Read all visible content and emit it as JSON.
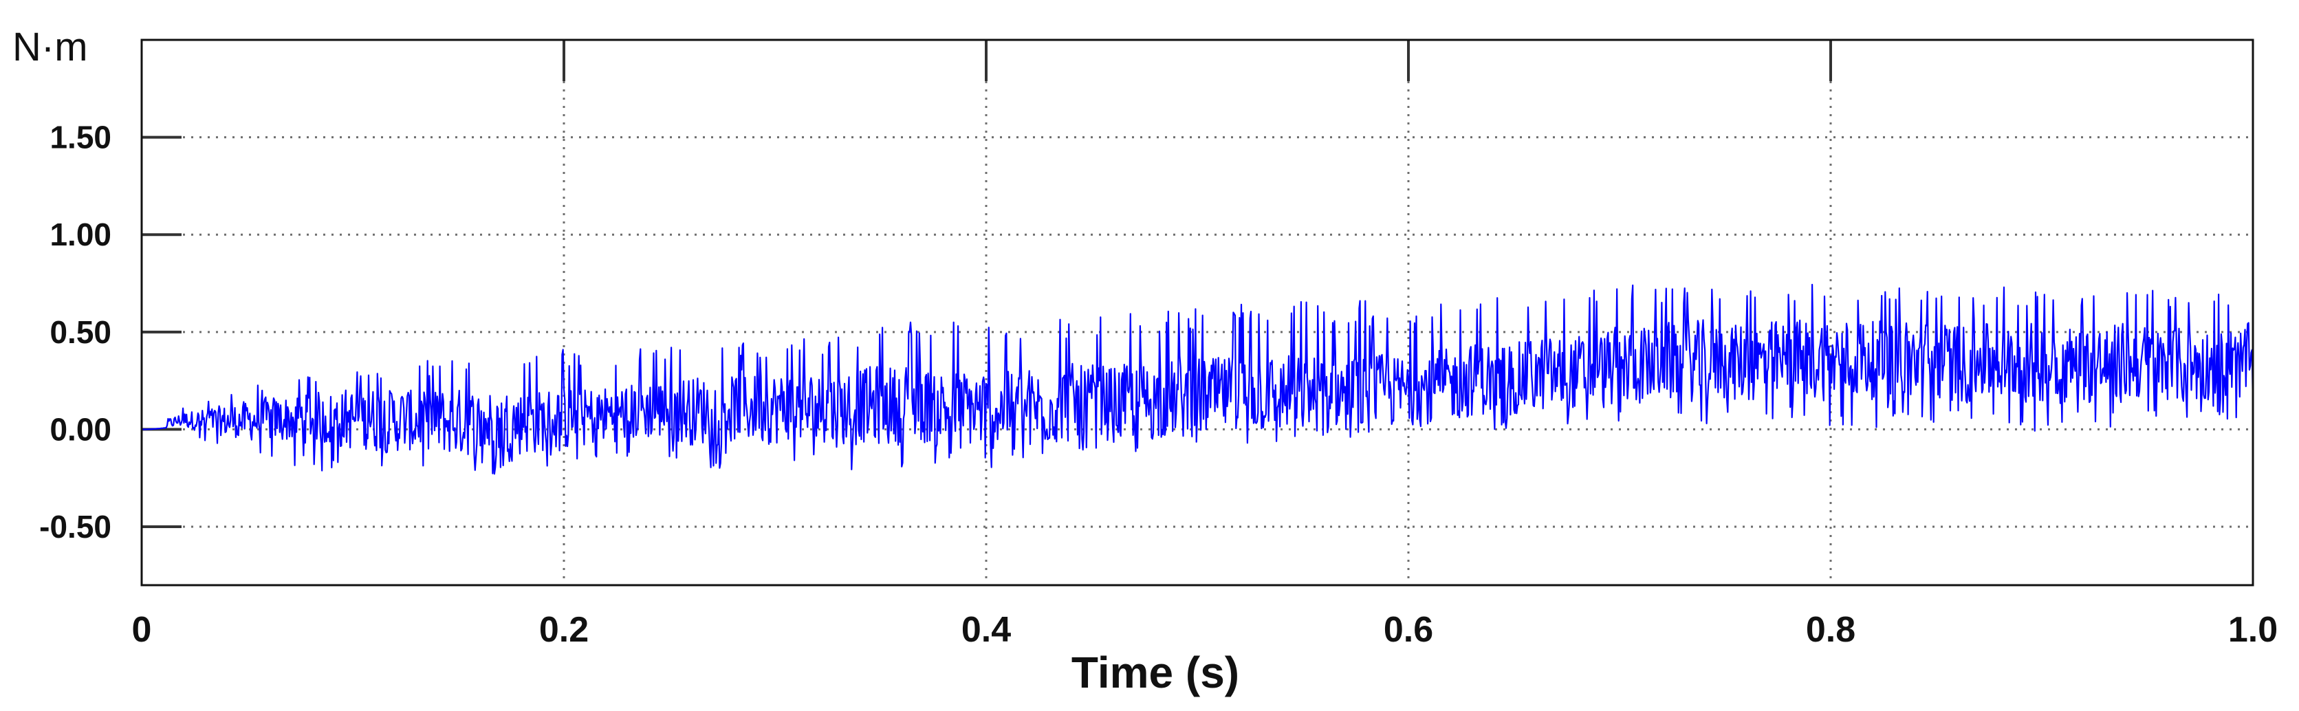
{
  "chart_data": {
    "type": "line",
    "title": "",
    "xlabel": "Time (s)",
    "ylabel": "N·m",
    "xlim": [
      0,
      1.0
    ],
    "ylim": [
      -0.8,
      2.0
    ],
    "x_ticks": [
      0,
      0.2,
      0.4,
      0.6,
      0.8,
      1.0
    ],
    "x_tick_labels": [
      "0",
      "0.2",
      "0.4",
      "0.6",
      "0.8",
      "1.0"
    ],
    "y_ticks": [
      -0.5,
      0.0,
      0.5,
      1.0,
      1.5
    ],
    "y_tick_labels": [
      "-0.50",
      "0.00",
      "0.50",
      "1.00",
      "1.50"
    ],
    "grid": true,
    "line_color": "#0000ff",
    "series": [
      {
        "x": [
          0,
          0.02,
          0.04,
          0.06,
          0.08,
          0.1,
          0.12,
          0.14,
          0.16,
          0.18,
          0.2,
          0.22,
          0.24,
          0.26,
          0.28,
          0.3,
          0.32,
          0.34,
          0.36,
          0.38,
          0.4,
          0.42,
          0.44,
          0.46,
          0.48,
          0.5,
          0.52,
          0.54,
          0.56,
          0.58,
          0.6,
          0.62,
          0.64,
          0.66,
          0.68,
          0.7,
          0.72,
          0.74,
          0.76,
          0.78,
          0.8,
          0.82,
          0.84,
          0.86,
          0.88,
          0.9,
          0.92,
          0.94,
          0.96,
          0.98,
          1.0
        ],
        "mean": [
          0.0,
          0.05,
          0.04,
          0.05,
          0.06,
          0.05,
          0.05,
          0.04,
          0.03,
          0.04,
          0.05,
          0.08,
          0.1,
          0.1,
          0.11,
          0.11,
          0.1,
          0.12,
          0.13,
          0.12,
          0.1,
          0.11,
          0.13,
          0.13,
          0.15,
          0.16,
          0.18,
          0.18,
          0.19,
          0.19,
          0.2,
          0.23,
          0.26,
          0.27,
          0.29,
          0.32,
          0.34,
          0.35,
          0.34,
          0.35,
          0.37,
          0.36,
          0.35,
          0.34,
          0.34,
          0.34,
          0.33,
          0.34,
          0.32,
          0.33,
          0.35
        ],
        "upper": [
          0.0,
          0.12,
          0.18,
          0.25,
          0.28,
          0.32,
          0.34,
          0.36,
          0.38,
          0.39,
          0.41,
          0.38,
          0.42,
          0.44,
          0.44,
          0.45,
          0.48,
          0.5,
          0.55,
          0.55,
          0.55,
          0.56,
          0.58,
          0.6,
          0.62,
          0.63,
          0.65,
          0.65,
          0.66,
          0.66,
          0.66,
          0.68,
          0.7,
          0.72,
          0.73,
          0.74,
          0.74,
          0.75,
          0.76,
          0.76,
          0.76,
          0.76,
          0.75,
          0.74,
          0.73,
          0.73,
          0.72,
          0.74,
          0.73,
          0.72,
          0.72
        ],
        "lower": [
          0.0,
          -0.02,
          -0.12,
          -0.16,
          -0.2,
          -0.26,
          -0.26,
          -0.25,
          -0.24,
          -0.22,
          -0.18,
          -0.15,
          -0.15,
          -0.2,
          -0.2,
          -0.22,
          -0.22,
          -0.23,
          -0.2,
          -0.18,
          -0.2,
          -0.16,
          -0.15,
          -0.13,
          -0.12,
          -0.12,
          -0.08,
          -0.08,
          -0.06,
          -0.05,
          0.0,
          0.0,
          0.0,
          0.02,
          0.03,
          0.02,
          0.0,
          0.01,
          0.0,
          0.01,
          0.0,
          0.0,
          0.01,
          0.0,
          -0.01,
          -0.02,
          0.0,
          0.0,
          0.02,
          0.03,
          0.04
        ]
      }
    ]
  }
}
